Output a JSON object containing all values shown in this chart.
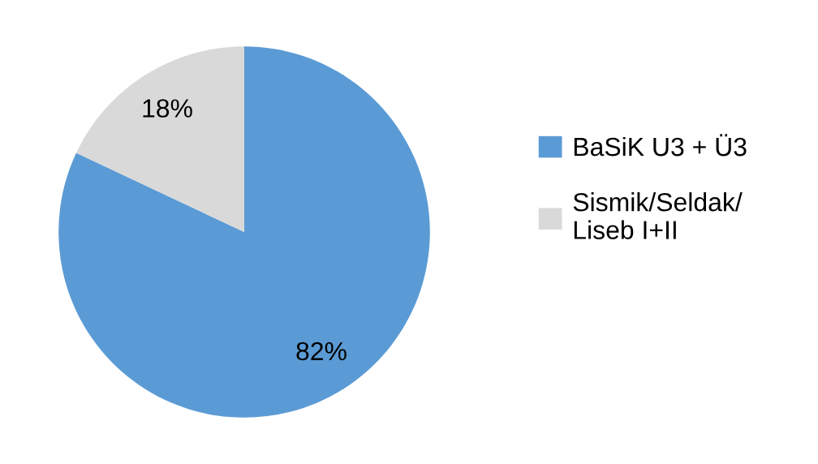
{
  "chart_data": {
    "type": "pie",
    "categories": [
      "BaSiK U3 + Ü3",
      "Sismik/Seldak/\nLiseb I+II"
    ],
    "values": [
      82,
      18
    ],
    "colors": [
      "#5b9bd5",
      "#d9d9d9"
    ],
    "value_labels": [
      "82%",
      "18%"
    ],
    "legend": "right"
  }
}
